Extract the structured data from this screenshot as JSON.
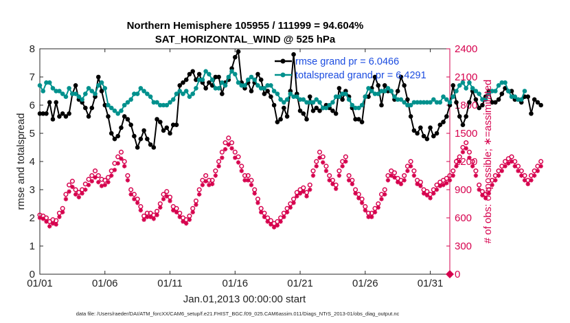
{
  "chart_data": {
    "type": "line",
    "title_line1": "Northern Hemisphere 105955 / 111999 = 94.604%",
    "title_line2": "SAT_HORIZONTAL_WIND @ 525 hPa",
    "xlabel": "Jan.01,2013 00:00:00 start",
    "ylabel_left": "rmse and totalspread",
    "ylabel_right": "# of obs: o=possible; ∗=assimilated",
    "xlim": [
      0,
      31.5
    ],
    "ylim_left": [
      0,
      8
    ],
    "ylim_right": [
      0,
      2400
    ],
    "x_ticks": [
      {
        "value": 0,
        "label": "01/01"
      },
      {
        "value": 5,
        "label": "01/06"
      },
      {
        "value": 10,
        "label": "01/11"
      },
      {
        "value": 15,
        "label": "01/16"
      },
      {
        "value": 20,
        "label": "01/21"
      },
      {
        "value": 25,
        "label": "01/26"
      },
      {
        "value": 30,
        "label": "01/31"
      }
    ],
    "y_ticks_left": [
      "0",
      "1",
      "2",
      "3",
      "4",
      "5",
      "6",
      "7",
      "8"
    ],
    "y_ticks_right": [
      "0",
      "300",
      "600",
      "900",
      "1200",
      "1500",
      "1800",
      "2100",
      "2400"
    ],
    "x_step_days": 0.25,
    "series": [
      {
        "name": "rmse grand pr = 6.0466",
        "color": "#000000",
        "axis": "left",
        "values": [
          5.7,
          5.7,
          5.7,
          6.1,
          5.5,
          6.1,
          5.6,
          5.7,
          5.6,
          5.7,
          6.4,
          6.7,
          6.2,
          6.1,
          5.9,
          5.6,
          5.9,
          6.3,
          7,
          6.5,
          6,
          5.6,
          5,
          4.8,
          4.9,
          5.2,
          5.6,
          5.5,
          5.3,
          4.9,
          4.5,
          4.8,
          5.1,
          4.8,
          4.6,
          4.5,
          5.5,
          5.4,
          5.1,
          5.2,
          5,
          5.3,
          5.3,
          6.7,
          6.8,
          6.9,
          7.1,
          7.2,
          6.9,
          7.1,
          6.8,
          6.6,
          6.8,
          6.7,
          7,
          7,
          6.4,
          6.8,
          6.9,
          7.3,
          7.7,
          7.9,
          6.8,
          6.6,
          6.8,
          6.5,
          6.8,
          7.1,
          6.9,
          6.4,
          6.5,
          6.3,
          6,
          5.4,
          5.5,
          5.9,
          5.6,
          6.5,
          7.8,
          6.4,
          5.8,
          5.7,
          5.5,
          6.3,
          5.8,
          5.9,
          5.8,
          5.9,
          6,
          5.9,
          5.8,
          5.7,
          6.6,
          6.2,
          6.5,
          6.3,
          5.9,
          5.5,
          5.5,
          5.4,
          6.3,
          6.3,
          6.6,
          7,
          6.7,
          6,
          6.7,
          6.5,
          6.5,
          6.2,
          6.5,
          7,
          6.7,
          6.2,
          5.6,
          5.1,
          5,
          5.2,
          4.9,
          4.8,
          5.2,
          4.9,
          5,
          5.3,
          5.4,
          5.6,
          6,
          6.7,
          6.1,
          5.6,
          5.3,
          5.6,
          6.1,
          6.5,
          6.2,
          5.9,
          6,
          6.3,
          6.5,
          6.1,
          6.1,
          6.2,
          6.4,
          6.6,
          6.5,
          6.5,
          6.2,
          6.2,
          6.1,
          6.3,
          6.3,
          5.7,
          6.2,
          6.1,
          6
        ]
      },
      {
        "name": "totalspread grand pr = 6.4291",
        "color": "#00918d",
        "axis": "left",
        "values": [
          6.7,
          6.5,
          6.8,
          6.8,
          6.6,
          6.5,
          6.5,
          6.4,
          6.3,
          6.6,
          6.4,
          6.4,
          6.3,
          6.2,
          6.4,
          6.6,
          6.5,
          6.4,
          6.7,
          6.8,
          6.6,
          6,
          5.9,
          5.8,
          5.7,
          5.8,
          6,
          6.1,
          6.2,
          6.4,
          6.4,
          6.6,
          6.5,
          6.4,
          6.3,
          6.1,
          6.1,
          6,
          6,
          6,
          6.1,
          6.2,
          6.4,
          6.5,
          6.4,
          6.5,
          6.3,
          6.4,
          6.6,
          6.9,
          6.9,
          7.2,
          7.1,
          6.9,
          6.6,
          6.6,
          6.8,
          6.7,
          7,
          7.2,
          7.1,
          6.8,
          6.7,
          6.7,
          6.9,
          7,
          6.9,
          6.7,
          6.6,
          6.6,
          6.7,
          6.7,
          6.5,
          6.4,
          6.2,
          6.1,
          6.2,
          6.4,
          6.3,
          6.3,
          6.2,
          6.2,
          6.1,
          6.1,
          6.1,
          6.2,
          6.1,
          5.9,
          5.9,
          6,
          6.1,
          6.3,
          6.3,
          6.4,
          6.4,
          6.2,
          6,
          5.9,
          5.9,
          6,
          6.3,
          6.6,
          6.5,
          6.4,
          6.4,
          6.5,
          6.5,
          6.6,
          6.5,
          6.3,
          6.2,
          6.2,
          6.1,
          6,
          6,
          6.1,
          6.1,
          6.1,
          6.1,
          6.1,
          6.1,
          6.2,
          6.1,
          6.1,
          6.3,
          6.2,
          6.1,
          6.3,
          6.5,
          6.7,
          6.8,
          6.6,
          6.8,
          6.6,
          6.5,
          6.4,
          6.2,
          6.2,
          6.4,
          6.5,
          6.5,
          6.7,
          6.8,
          6.8,
          6.5,
          6.3,
          6.3,
          6.2,
          6.2,
          6.5
        ]
      },
      {
        "name": "possible",
        "color": "#d6004d",
        "axis": "right",
        "marker": "circle",
        "values": [
          630,
          620,
          600,
          560,
          580,
          570,
          650,
          700,
          850,
          950,
          990,
          900,
          870,
          900,
          960,
          1010,
          1050,
          1100,
          1050,
          1010,
          1000,
          1030,
          1100,
          1180,
          1250,
          1300,
          1200,
          1050,
          900,
          850,
          800,
          720,
          620,
          650,
          650,
          630,
          670,
          750,
          850,
          880,
          820,
          720,
          700,
          650,
          600,
          580,
          620,
          700,
          780,
          900,
          1000,
          1050,
          1000,
          1000,
          1100,
          1200,
          1300,
          1400,
          1450,
          1400,
          1300,
          1250,
          1150,
          1050,
          1050,
          1000,
          900,
          800,
          700,
          650,
          600,
          570,
          540,
          560,
          600,
          650,
          700,
          750,
          800,
          870,
          900,
          920,
          870,
          950,
          1100,
          1200,
          1300,
          1250,
          1150,
          1050,
          1000,
          950,
          1100,
          1200,
          1250,
          1050,
          1000,
          900,
          850,
          800,
          720,
          650,
          650,
          700,
          750,
          850,
          900,
          1050,
          1100,
          1080,
          1020,
          1000,
          1050,
          1150,
          1200,
          1100,
          1000,
          980,
          900,
          880,
          850,
          900,
          950,
          980,
          1000,
          1020,
          1050,
          1100,
          1200,
          1250,
          1350,
          1400,
          1300,
          1200,
          1100,
          950,
          880,
          850,
          900,
          1000,
          1050,
          1100,
          1150,
          1200,
          1230,
          1250,
          1200,
          1150,
          1100,
          1050,
          1000,
          1050,
          1100,
          1150,
          1200
        ]
      },
      {
        "name": "assimilated",
        "color": "#d6004d",
        "axis": "right",
        "marker": "asterisk",
        "values": [
          600,
          590,
          560,
          510,
          540,
          530,
          610,
          660,
          800,
          880,
          930,
          850,
          820,
          860,
          900,
          950,
          990,
          1030,
          980,
          940,
          950,
          980,
          1050,
          1110,
          1180,
          1230,
          1150,
          1000,
          850,
          800,
          760,
          680,
          580,
          610,
          610,
          590,
          630,
          710,
          800,
          830,
          780,
          680,
          660,
          610,
          560,
          540,
          580,
          660,
          740,
          850,
          950,
          990,
          950,
          960,
          1050,
          1150,
          1240,
          1330,
          1380,
          1340,
          1240,
          1190,
          1100,
          1000,
          1000,
          950,
          860,
          760,
          660,
          610,
          560,
          530,
          500,
          520,
          560,
          610,
          660,
          710,
          760,
          830,
          860,
          880,
          830,
          900,
          1050,
          1150,
          1240,
          1190,
          1100,
          1000,
          960,
          910,
          1050,
          1150,
          1200,
          1000,
          960,
          860,
          810,
          760,
          680,
          610,
          610,
          660,
          710,
          800,
          850,
          1000,
          1050,
          1030,
          980,
          960,
          1000,
          1100,
          1150,
          1050,
          960,
          940,
          860,
          840,
          810,
          860,
          900,
          940,
          950,
          970,
          1000,
          1050,
          1150,
          1200,
          1300,
          1340,
          1240,
          1150,
          1050,
          900,
          840,
          810,
          860,
          950,
          1000,
          1050,
          1100,
          1150,
          1180,
          1200,
          1150,
          1100,
          1050,
          1000,
          960,
          1000,
          1050,
          1100,
          1150
        ]
      }
    ],
    "end_markers_right": [
      {
        "x": 31.5,
        "y": 0
      }
    ],
    "grid": false,
    "legend_position": "top-right",
    "footnote": "data file: /Users/raeder/DAI/ATM_forcXX/CAM6_setup/f.e21.FHIST_BGC.f09_025.CAM6assim.011/Diags_NTrS_2013-01/obs_diag_output.nc"
  }
}
